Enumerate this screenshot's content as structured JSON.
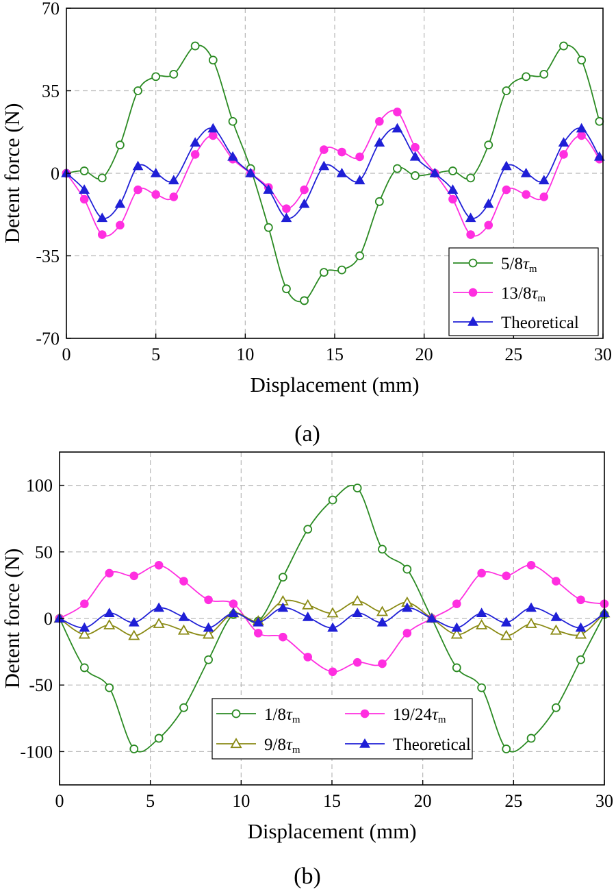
{
  "chart_data": [
    {
      "type": "line",
      "panel_label": "(a)",
      "title": "",
      "xlabel": "Displacement (mm)",
      "ylabel": "Detent force (N)",
      "xlim": [
        0,
        30
      ],
      "ylim": [
        -70,
        70
      ],
      "xticks": [
        0,
        5,
        10,
        15,
        20,
        25,
        30
      ],
      "xtick_labels": [
        "0",
        "5",
        "10",
        "15",
        "20",
        "25",
        "30"
      ],
      "yticks": [
        -70,
        -35,
        0,
        35,
        70
      ],
      "ytick_labels": [
        "-70",
        "-35",
        "0",
        "35",
        "70"
      ],
      "grid": true,
      "legend_position": "bottom-right",
      "legend_columns": 1,
      "series": [
        {
          "name": "5/8τm",
          "legend_prefix": "5/8",
          "legend_tau": "τ",
          "legend_sub": "m",
          "color": "#2a8a22",
          "marker": "circle-open",
          "x": [
            0,
            1,
            2,
            3,
            4,
            5,
            6,
            7.2,
            8.2,
            9.3,
            10.3,
            11.3,
            12.3,
            13.3,
            14.4,
            15.4,
            16.4,
            17.5,
            18.5,
            19.5,
            20.6,
            21.6,
            22.6,
            23.6,
            24.6,
            25.7,
            26.7,
            27.8,
            28.8,
            29.8
          ],
          "values": [
            0,
            1,
            -2,
            12,
            35,
            41,
            42,
            54,
            48,
            22,
            2,
            -23,
            -49,
            -54,
            -42,
            -41,
            -35,
            -12,
            2,
            -1,
            0,
            1,
            -2,
            12,
            35,
            41,
            42,
            54,
            48,
            22
          ]
        },
        {
          "name": "13/8τm",
          "legend_prefix": "13/8",
          "legend_tau": "τ",
          "legend_sub": "m",
          "color": "#ff2ee0",
          "marker": "circle-filled",
          "x": [
            0,
            1,
            2,
            3,
            4,
            5,
            6,
            7.2,
            8.2,
            9.3,
            10.3,
            11.3,
            12.3,
            13.3,
            14.4,
            15.4,
            16.4,
            17.5,
            18.5,
            19.5,
            20.6,
            21.6,
            22.6,
            23.6,
            24.6,
            25.7,
            26.7,
            27.8,
            28.8,
            29.8
          ],
          "values": [
            0,
            -11,
            -26,
            -22,
            -7,
            -9,
            -10,
            8,
            16,
            6,
            0,
            -6,
            -15,
            -7,
            10,
            9,
            7,
            22,
            26,
            11,
            0,
            -11,
            -26,
            -22,
            -7,
            -9,
            -10,
            8,
            16,
            6
          ]
        },
        {
          "name": "Theoretical",
          "legend_prefix": "Theoretical",
          "legend_tau": "",
          "legend_sub": "",
          "color": "#1f1fd6",
          "marker": "triangle-filled",
          "x": [
            0,
            1,
            2,
            3,
            4,
            5,
            6,
            7.2,
            8.2,
            9.3,
            10.3,
            11.3,
            12.3,
            13.3,
            14.4,
            15.4,
            16.4,
            17.5,
            18.5,
            19.5,
            20.6,
            21.6,
            22.6,
            23.6,
            24.6,
            25.7,
            26.7,
            27.8,
            28.8,
            29.8
          ],
          "values": [
            0,
            -7,
            -19,
            -13,
            3,
            0,
            -3,
            13,
            19,
            7,
            0,
            -7,
            -19,
            -13,
            3,
            0,
            -3,
            13,
            19,
            7,
            0,
            -7,
            -19,
            -13,
            3,
            0,
            -3,
            13,
            19,
            7
          ]
        }
      ]
    },
    {
      "type": "line",
      "panel_label": "(b)",
      "title": "",
      "xlabel": "Displacement (mm)",
      "ylabel": "Detent force (N)",
      "xlim": [
        0,
        30
      ],
      "ylim": [
        -125,
        125
      ],
      "xticks": [
        0,
        5,
        10,
        15,
        20,
        25,
        30
      ],
      "xtick_labels": [
        "0",
        "5",
        "10",
        "15",
        "20",
        "25",
        "30"
      ],
      "yticks": [
        -100,
        -50,
        0,
        50,
        100
      ],
      "ytick_labels": [
        "-100",
        "-50",
        "0",
        "50",
        "100"
      ],
      "grid": true,
      "legend_position": "bottom-center",
      "legend_columns": 2,
      "series": [
        {
          "name": "1/8τm",
          "legend_prefix": "1/8",
          "legend_tau": "τ",
          "legend_sub": "m",
          "color": "#2a8a22",
          "marker": "circle-open",
          "x": [
            0,
            1.37,
            2.74,
            4.1,
            5.47,
            6.84,
            8.2,
            9.57,
            10.94,
            12.3,
            13.67,
            15.04,
            16.4,
            17.77,
            19.14,
            20.5,
            21.87,
            23.24,
            24.6,
            25.97,
            27.34,
            28.7,
            30
          ],
          "values": [
            0,
            -37,
            -52,
            -98,
            -90,
            -67,
            -31,
            3,
            -2,
            31,
            67,
            89,
            98,
            52,
            37,
            0,
            -37,
            -52,
            -98,
            -90,
            -67,
            -31,
            3
          ]
        },
        {
          "name": "19/24τm",
          "legend_prefix": "19/24",
          "legend_tau": "τ",
          "legend_sub": "m",
          "color": "#ff2ee0",
          "marker": "circle-filled",
          "x": [
            0,
            1.37,
            2.74,
            4.1,
            5.47,
            6.84,
            8.2,
            9.57,
            10.94,
            12.3,
            13.67,
            15.04,
            16.4,
            17.77,
            19.14,
            20.5,
            21.87,
            23.24,
            24.6,
            25.97,
            27.34,
            28.7,
            30
          ],
          "values": [
            0,
            11,
            34,
            32,
            40,
            28,
            14,
            11,
            -11,
            -14,
            -29,
            -40,
            -33,
            -34,
            -11,
            0,
            11,
            34,
            32,
            40,
            28,
            14,
            11
          ]
        },
        {
          "name": "9/8τm",
          "legend_prefix": "9/8",
          "legend_tau": "τ",
          "legend_sub": "m",
          "color": "#8a8a14",
          "marker": "triangle-open",
          "x": [
            0,
            1.37,
            2.74,
            4.1,
            5.47,
            6.84,
            8.2,
            9.57,
            10.94,
            12.3,
            13.67,
            15.04,
            16.4,
            17.77,
            19.14,
            20.5,
            21.87,
            23.24,
            24.6,
            25.97,
            27.34,
            28.7,
            30
          ],
          "values": [
            0,
            -12,
            -5,
            -13,
            -4,
            -9,
            -12,
            4,
            -2,
            13,
            10,
            4,
            13,
            5,
            12,
            0,
            -12,
            -5,
            -13,
            -4,
            -9,
            -12,
            4
          ]
        },
        {
          "name": "Theoretical",
          "legend_prefix": "Theoretical",
          "legend_tau": "",
          "legend_sub": "",
          "color": "#1f1fd6",
          "marker": "triangle-filled",
          "x": [
            0,
            1.37,
            2.74,
            4.1,
            5.47,
            6.84,
            8.2,
            9.57,
            10.94,
            12.3,
            13.67,
            15.04,
            16.4,
            17.77,
            19.14,
            20.5,
            21.87,
            23.24,
            24.6,
            25.97,
            27.34,
            28.7,
            30
          ],
          "values": [
            0,
            -7,
            4,
            -3,
            8,
            1,
            -7,
            4,
            -3,
            8,
            1,
            -7,
            4,
            -3,
            8,
            0,
            -7,
            4,
            -3,
            8,
            1,
            -7,
            4
          ]
        }
      ]
    }
  ]
}
